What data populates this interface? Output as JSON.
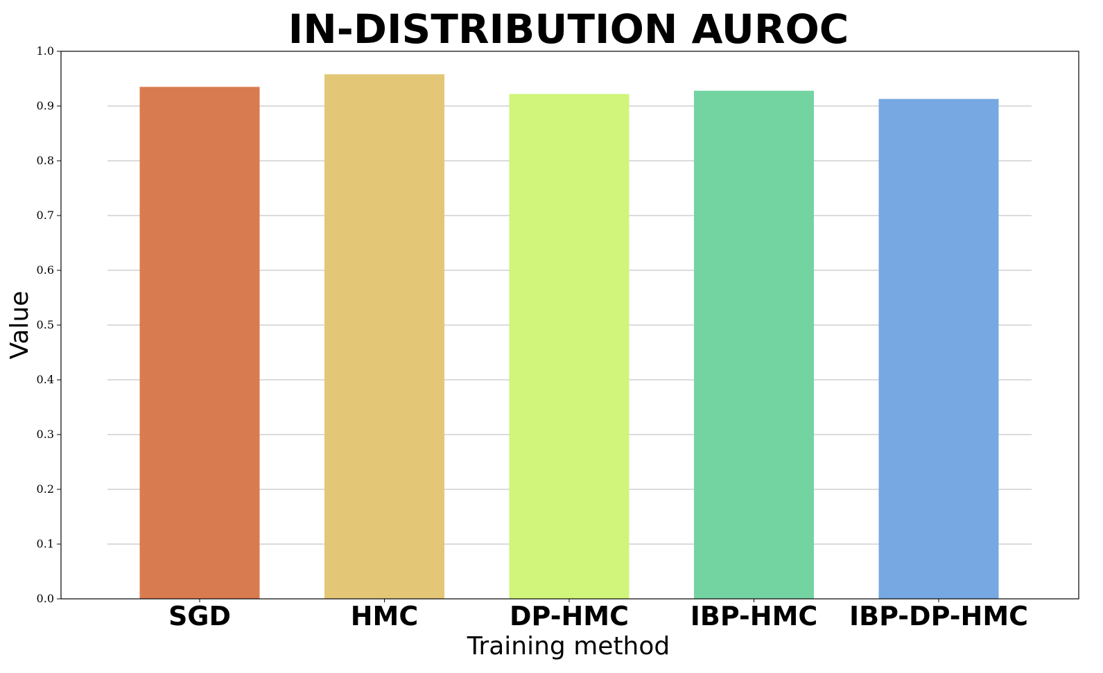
{
  "chart_data": {
    "type": "bar",
    "title": "IN-DISTRIBUTION AUROC",
    "xlabel": "Training method",
    "ylabel": "Value",
    "categories": [
      "SGD",
      "HMC",
      "DP-HMC",
      "IBP-HMC",
      "IBP-DP-HMC"
    ],
    "values": [
      0.935,
      0.958,
      0.922,
      0.928,
      0.913
    ],
    "colors": [
      "#d97b50",
      "#e3c776",
      "#d0f57a",
      "#73d4a2",
      "#77a8e2"
    ],
    "ylim": [
      0,
      1.0
    ],
    "yticks": [
      "0.0",
      "0.1",
      "0.2",
      "0.3",
      "0.4",
      "0.5",
      "0.6",
      "0.7",
      "0.8",
      "0.9",
      "1.0"
    ],
    "grid": true,
    "legend": "none"
  }
}
